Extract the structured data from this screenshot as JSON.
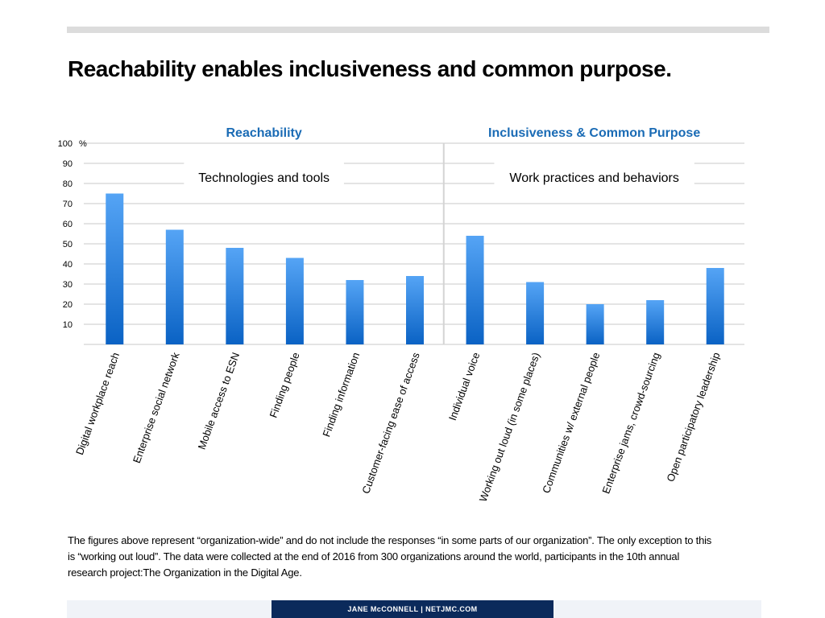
{
  "page": {
    "title": "Reachability enables inclusiveness and common purpose.",
    "footnote": "The figures above represent “organization-wide” and do not include the responses “in some parts of our organization”. The only exception to this is “working out loud”.  The data were collected at the end of 2016 from 300 organizations around the world, participants in the 10th annual research project:The Organization in the Digital Age.",
    "footer": "JANE McCONNELL   |   NETJMC.COM"
  },
  "chart_data": {
    "type": "bar",
    "title": "Reachability enables inclusiveness and common purpose.",
    "xlabel": "",
    "ylabel": "%",
    "ylim": [
      0,
      100
    ],
    "yticks": [
      10,
      20,
      30,
      40,
      50,
      60,
      70,
      80,
      90,
      100
    ],
    "grid": true,
    "bar_color_top": "#55a4f5",
    "bar_color_bottom": "#0a62c4",
    "section_title_color": "#1a6bb5",
    "groups": [
      {
        "title": "Reachability",
        "subtitle": "Technologies and tools",
        "start": 0,
        "end": 5
      },
      {
        "title": "Inclusiveness & Common Purpose",
        "subtitle": "Work practices and behaviors",
        "start": 6,
        "end": 10
      }
    ],
    "categories": [
      "Digital workplace  reach",
      "Enterprise social network",
      "Mobile access to ESN",
      "Finding people",
      "Finding information",
      "Customer-facing ease of access",
      "Individual voice",
      "Working out loud (in some places)",
      "Communities w/ external people",
      "Enterprise jams, crowd-sourcing",
      "Open participatory leadership"
    ],
    "values": [
      75,
      57,
      48,
      43,
      32,
      34,
      54,
      31,
      20,
      22,
      38
    ]
  }
}
